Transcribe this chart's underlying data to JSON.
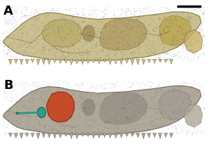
{
  "background_color": "#ffffff",
  "panel_A_label": "A",
  "panel_B_label": "B",
  "label_fontsize": 13,
  "label_color": "#000000",
  "label_bold": true,
  "scale_bar_color": "#000000",
  "highlight_orange": "#c84420",
  "highlight_teal": "#2a9988",
  "fig_width": 3.0,
  "fig_height": 2.13,
  "dpi": 100,
  "skull_A_color": "#ccc090",
  "skull_B_color": "#b0a898",
  "skull_A_edge": "#887840",
  "skull_B_edge": "#706860"
}
